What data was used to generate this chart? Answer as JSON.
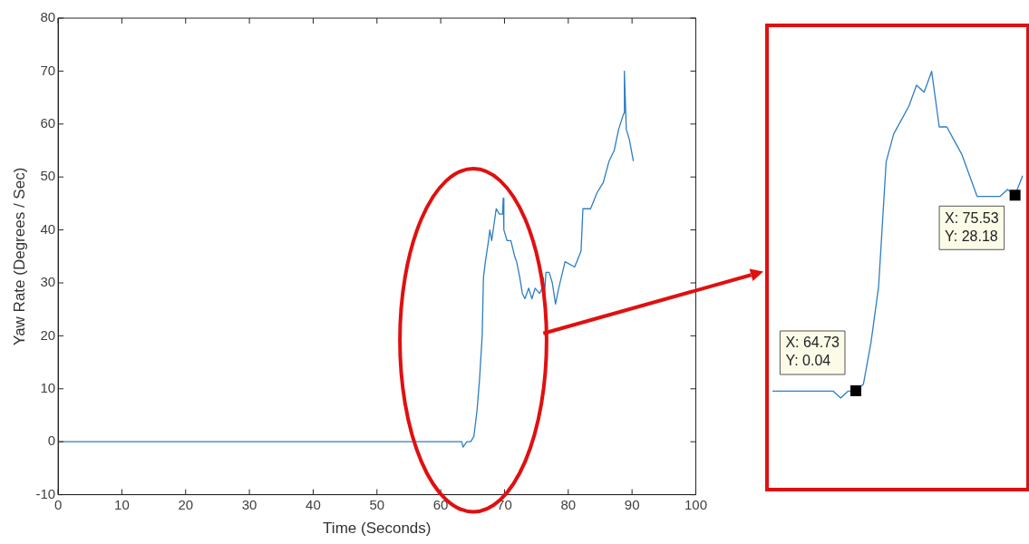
{
  "chart_data": [
    {
      "type": "line",
      "xlabel": "Time (Seconds)",
      "ylabel": "Yaw Rate (Degrees / Sec)",
      "xlim": [
        0,
        100
      ],
      "ylim": [
        -10,
        80
      ],
      "xticks": [
        0,
        10,
        20,
        30,
        40,
        50,
        60,
        70,
        80,
        90,
        100
      ],
      "yticks": [
        -10,
        0,
        10,
        20,
        30,
        40,
        50,
        60,
        70,
        80
      ],
      "grid": false,
      "series": [
        {
          "color": "#2e7ec4",
          "x": [
            0,
            10,
            20,
            30,
            40,
            50,
            62,
            63.3,
            63.5,
            64.1,
            64.7,
            65.2,
            65.7,
            66.1,
            66.5,
            66.7,
            67,
            67.5,
            67.7,
            68,
            68.7,
            69.2,
            69.7,
            69.8,
            69.9,
            70.4,
            71,
            71.6,
            71.9,
            72.4,
            72.8,
            73.2,
            73.8,
            74.3,
            74.8,
            75.5,
            75.9,
            76.1,
            76.3,
            76.5,
            77,
            77.5,
            78,
            78.5,
            79.5,
            81,
            82,
            82.3,
            83.5,
            84.5,
            85.5,
            86.4,
            87.2,
            87.9,
            88.7,
            88.8,
            89.1,
            89.6,
            90.2
          ],
          "values": [
            0,
            0,
            0,
            0,
            0,
            0,
            0,
            0,
            -1,
            0,
            0,
            1,
            6,
            12,
            20,
            31,
            34,
            38,
            40,
            38,
            44,
            43,
            43,
            46,
            40,
            38,
            38,
            35,
            34,
            31,
            28,
            27,
            29,
            27,
            29,
            28,
            29,
            31,
            28,
            32,
            32,
            30,
            26,
            29,
            34,
            33,
            36,
            44,
            44,
            47,
            49,
            53,
            55,
            59,
            62,
            70,
            59,
            57,
            53
          ]
        }
      ]
    },
    {
      "type": "line",
      "tick_labels": false,
      "categories": [
        null,
        null,
        null,
        null,
        null,
        null,
        null,
        null,
        null,
        null,
        null,
        null,
        null,
        null,
        null,
        null,
        null,
        null,
        null,
        null,
        null,
        null,
        null,
        null,
        null,
        null,
        null,
        null,
        null,
        null,
        null,
        null,
        null,
        null
      ],
      "series": [
        {
          "color": "#2e7ec4",
          "values": [
            0,
            0,
            0,
            0,
            0,
            0,
            0,
            0,
            0,
            -1,
            0,
            0.04,
            1,
            7,
            15,
            33,
            37,
            39,
            41,
            44,
            43,
            46,
            38,
            38,
            36,
            34,
            31,
            28,
            28,
            28,
            28,
            29,
            28.18,
            31
          ],
          "value_labels": [
            null,
            null,
            null,
            null,
            null,
            null,
            null,
            null,
            null,
            null,
            null,
            "X: 64.73\nY: 0.04",
            null,
            null,
            null,
            null,
            null,
            null,
            null,
            null,
            null,
            null,
            null,
            null,
            null,
            null,
            null,
            null,
            null,
            null,
            null,
            null,
            "X: 75.53\nY: 28.18",
            null
          ]
        }
      ]
    }
  ]
}
